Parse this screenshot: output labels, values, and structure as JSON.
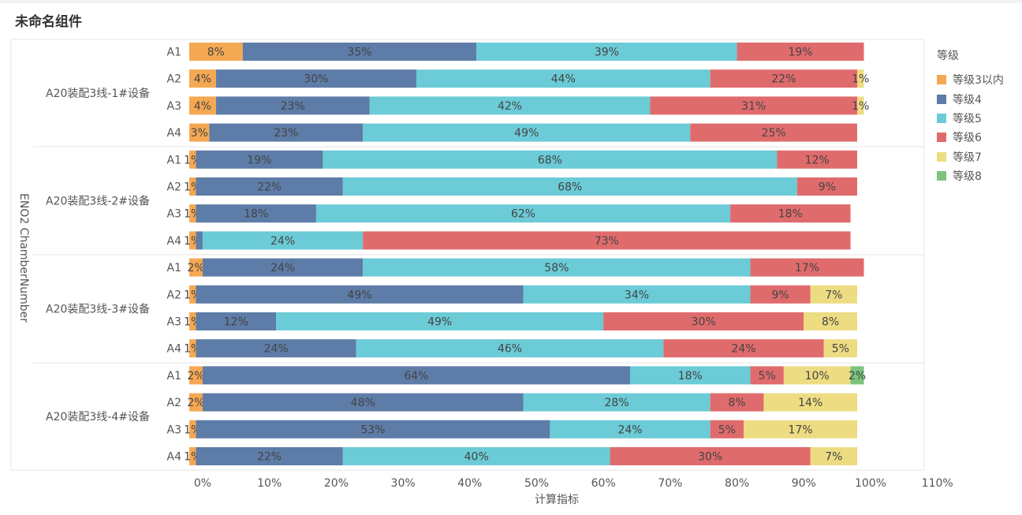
{
  "widget": {
    "title": "未命名组件"
  },
  "chart_data": {
    "type": "bar",
    "orientation": "horizontal",
    "stacked": true,
    "xlabel": "计算指标",
    "ylabel": "ENO2 ChamberNumber",
    "xlim": [
      0,
      110
    ],
    "x_ticks": [
      "0%",
      "10%",
      "20%",
      "30%",
      "40%",
      "50%",
      "60%",
      "70%",
      "80%",
      "90%",
      "100%",
      "110%"
    ],
    "legend": {
      "title": "等级",
      "position": "right",
      "entries": [
        {
          "name": "等级3以内",
          "color": "#F5A852"
        },
        {
          "name": "等级4",
          "color": "#5D7CA7"
        },
        {
          "name": "等级5",
          "color": "#6BCBD6"
        },
        {
          "name": "等级6",
          "color": "#E06B6C"
        },
        {
          "name": "等级7",
          "color": "#EDDC82"
        },
        {
          "name": "等级8",
          "color": "#7DC27E"
        }
      ]
    },
    "groups": [
      {
        "label": "A20装配3线-1#设备",
        "rows": [
          {
            "label": "A1",
            "values": [
              8,
              35,
              39,
              19,
              0,
              0
            ]
          },
          {
            "label": "A2",
            "values": [
              4,
              30,
              44,
              22,
              1,
              0
            ]
          },
          {
            "label": "A3",
            "values": [
              4,
              23,
              42,
              31,
              1,
              0
            ]
          },
          {
            "label": "A4",
            "values": [
              3,
              23,
              49,
              25,
              0,
              0
            ]
          }
        ]
      },
      {
        "label": "A20装配3线-2#设备",
        "rows": [
          {
            "label": "A1",
            "values": [
              1,
              19,
              68,
              12,
              0,
              0
            ]
          },
          {
            "label": "A2",
            "values": [
              1,
              22,
              68,
              9,
              0,
              0
            ]
          },
          {
            "label": "A3",
            "values": [
              1,
              18,
              62,
              18,
              0,
              0
            ]
          },
          {
            "label": "A4",
            "values": [
              1,
              1,
              24,
              73,
              0,
              0
            ]
          }
        ]
      },
      {
        "label": "A20装配3线-3#设备",
        "rows": [
          {
            "label": "A1",
            "values": [
              2,
              24,
              58,
              17,
              0,
              0
            ]
          },
          {
            "label": "A2",
            "values": [
              1,
              49,
              34,
              9,
              7,
              0
            ]
          },
          {
            "label": "A3",
            "values": [
              1,
              12,
              49,
              30,
              8,
              0
            ]
          },
          {
            "label": "A4",
            "values": [
              1,
              24,
              46,
              24,
              5,
              0
            ]
          }
        ]
      },
      {
        "label": "A20装配3线-4#设备",
        "rows": [
          {
            "label": "A1",
            "values": [
              2,
              64,
              18,
              5,
              10,
              2
            ]
          },
          {
            "label": "A2",
            "values": [
              2,
              48,
              28,
              8,
              14,
              0
            ]
          },
          {
            "label": "A3",
            "values": [
              1,
              53,
              24,
              5,
              17,
              0
            ]
          },
          {
            "label": "A4",
            "values": [
              1,
              22,
              40,
              30,
              7,
              0
            ]
          }
        ]
      }
    ],
    "data_labels": [
      [
        "8%",
        "35%",
        "39%",
        "19%",
        "",
        ""
      ],
      [
        "4%",
        "30%",
        "44%",
        "22%",
        "1%",
        ""
      ],
      [
        "4%",
        "23%",
        "42%",
        "31%",
        "1%",
        ""
      ],
      [
        "3%",
        "23%",
        "49%",
        "25%",
        "",
        ""
      ],
      [
        "1%",
        "19%",
        "68%",
        "12%",
        "",
        ""
      ],
      [
        "1%",
        "22%",
        "68%",
        "9%",
        "",
        ""
      ],
      [
        "1%",
        "18%",
        "62%",
        "18%",
        "",
        ""
      ],
      [
        "1%",
        "",
        "24%",
        "73%",
        "",
        ""
      ],
      [
        "2%",
        "24%",
        "58%",
        "17%",
        "",
        ""
      ],
      [
        "1%",
        "49%",
        "34%",
        "9%",
        "7%",
        ""
      ],
      [
        "1%",
        "12%",
        "49%",
        "30%",
        "8%",
        ""
      ],
      [
        "1%",
        "24%",
        "46%",
        "24%",
        "5%",
        ""
      ],
      [
        "2%",
        "64%",
        "18%",
        "5%",
        "10%",
        "2%"
      ],
      [
        "2%",
        "48%",
        "28%",
        "8%",
        "14%",
        ""
      ],
      [
        "1%",
        "53%",
        "24%",
        "5%",
        "17%",
        ""
      ],
      [
        "1%",
        "22%",
        "40%",
        "30%",
        "7%",
        ""
      ]
    ]
  }
}
